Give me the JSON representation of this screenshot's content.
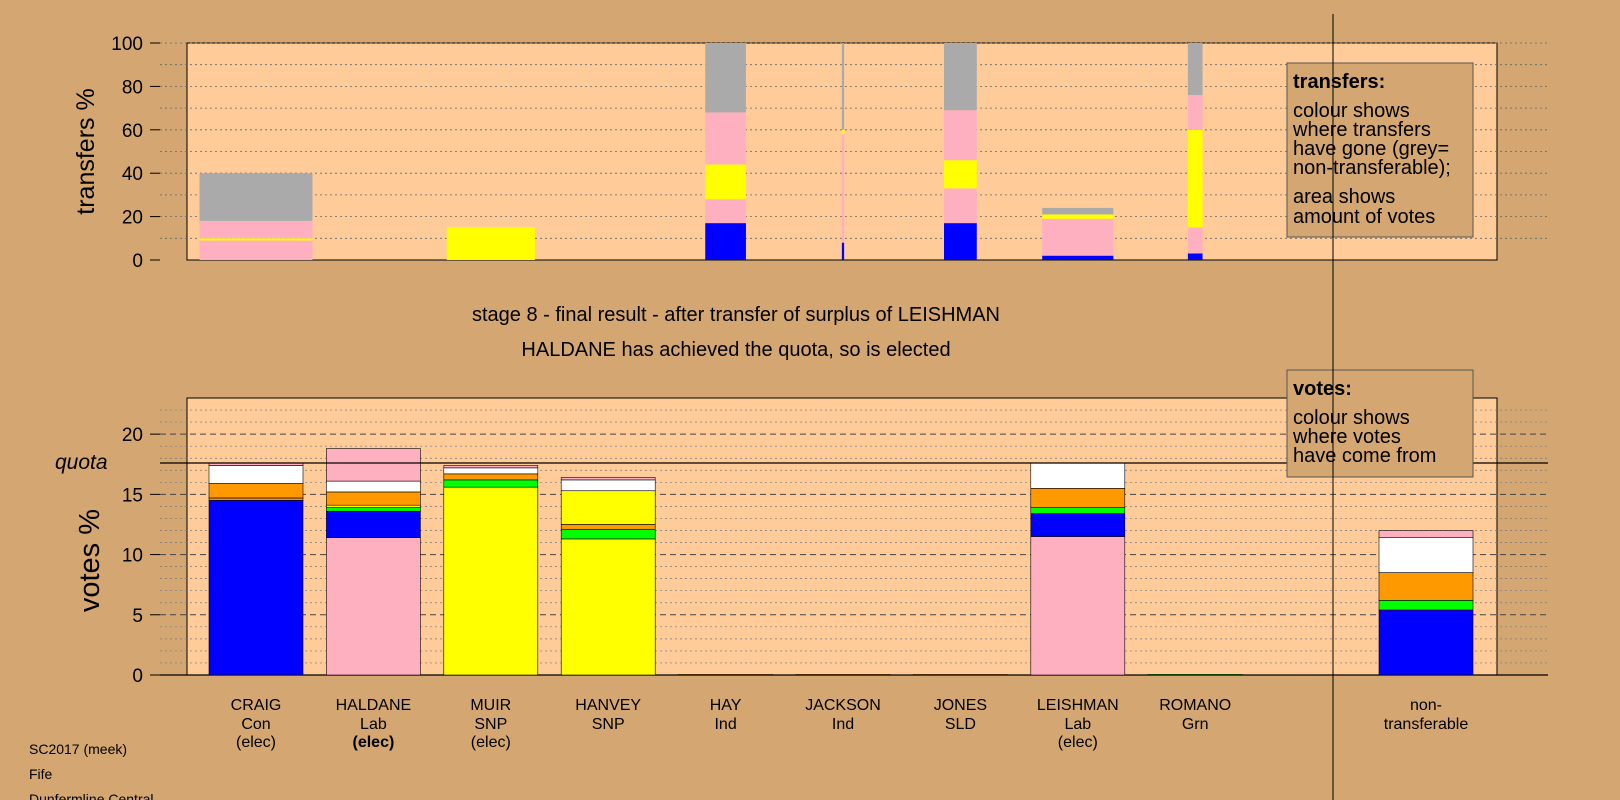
{
  "stage_title": "stage 8 - final result - after transfer of surplus of LEISHMAN",
  "stage_subtitle": "HALDANE has achieved the quota, so is elected",
  "footer": {
    "line1": "SC2017 (meek)",
    "line2": "Fife",
    "line3": "Dunfermline Central"
  },
  "colors": {
    "background": "#d4a772",
    "plot_background": "#ffcc99",
    "Con": "#0000ff",
    "Lab": "#ffb0c0",
    "SNP": "#ffff00",
    "Grn": "#00ff00",
    "Ind": "#ff8c00",
    "SLD": "#ff9900",
    "other": "#ffffff",
    "nontransferable": "#aaaaaa"
  },
  "chart_data": [
    {
      "type": "bar",
      "name": "transfers",
      "ylabel": "transfers %",
      "ylim": [
        0,
        100
      ],
      "yticks": [
        0,
        20,
        40,
        60,
        80,
        100
      ],
      "legend": {
        "title": "transfers:",
        "text": "colour shows where transfers have gone (grey= non-transferable); area shows amount of votes",
        "lines": [
          "colour shows",
          "where transfers",
          "have gone (grey=",
          "non-transferable);"
        ],
        "lines2": [
          "area shows",
          "amount of votes"
        ]
      },
      "bars": [
        {
          "candidate": "CRAIG",
          "width_share": 1.0,
          "segments": [
            {
              "color": "#ffb0c0",
              "value": 9
            },
            {
              "color": "#ffff00",
              "value": 1
            },
            {
              "color": "#ffb0c0",
              "value": 8
            },
            {
              "color": "#aaaaaa",
              "value": 22
            }
          ]
        },
        {
          "candidate": "MUIR",
          "width_share": 0.78,
          "segments": [
            {
              "color": "#ffff00",
              "value": 15
            }
          ]
        },
        {
          "candidate": "HAY",
          "width_share": 0.36,
          "segments": [
            {
              "color": "#0000ff",
              "value": 17
            },
            {
              "color": "#ffb0c0",
              "value": 11
            },
            {
              "color": "#ffff00",
              "value": 16
            },
            {
              "color": "#ffb0c0",
              "value": 24
            },
            {
              "color": "#aaaaaa",
              "value": 32
            }
          ]
        },
        {
          "candidate": "JACKSON",
          "width_share": 0.02,
          "segments": [
            {
              "color": "#0000ff",
              "value": 8
            },
            {
              "color": "#ffb0c0",
              "value": 50
            },
            {
              "color": "#ffff00",
              "value": 2
            },
            {
              "color": "#aaaaaa",
              "value": 40
            }
          ]
        },
        {
          "candidate": "JONES",
          "width_share": 0.29,
          "segments": [
            {
              "color": "#0000ff",
              "value": 17
            },
            {
              "color": "#ffb0c0",
              "value": 16
            },
            {
              "color": "#ffff00",
              "value": 13
            },
            {
              "color": "#ffb0c0",
              "value": 23
            },
            {
              "color": "#aaaaaa",
              "value": 31
            }
          ]
        },
        {
          "candidate": "LEISHMAN",
          "width_share": 0.63,
          "segments": [
            {
              "color": "#0000ff",
              "value": 2
            },
            {
              "color": "#ffb0c0",
              "value": 17
            },
            {
              "color": "#ffff00",
              "value": 2
            },
            {
              "color": "#aaaaaa",
              "value": 3
            }
          ]
        },
        {
          "candidate": "ROMANO",
          "width_share": 0.13,
          "segments": [
            {
              "color": "#0000ff",
              "value": 3
            },
            {
              "color": "#ffb0c0",
              "value": 12
            },
            {
              "color": "#ffff00",
              "value": 45
            },
            {
              "color": "#ffb0c0",
              "value": 16
            },
            {
              "color": "#aaaaaa",
              "value": 24
            }
          ]
        }
      ]
    },
    {
      "type": "bar",
      "name": "votes",
      "ylabel": "votes %",
      "ylim": [
        0,
        23
      ],
      "yticks": [
        0,
        5,
        10,
        15,
        20
      ],
      "quota": 17.6,
      "quota_label": "quota",
      "legend": {
        "title": "votes:",
        "lines": [
          "colour shows",
          "where votes",
          "have come from"
        ]
      },
      "categories": [
        {
          "name": "CRAIG",
          "party": "Con",
          "status": "(elec)",
          "bold_status": false
        },
        {
          "name": "HALDANE",
          "party": "Lab",
          "status": "(elec)",
          "bold_status": true
        },
        {
          "name": "MUIR",
          "party": "SNP",
          "status": "(elec)",
          "bold_status": false
        },
        {
          "name": "HANVEY",
          "party": "SNP",
          "status": "",
          "bold_status": false
        },
        {
          "name": "HAY",
          "party": "Ind",
          "status": "",
          "bold_status": false
        },
        {
          "name": "JACKSON",
          "party": "Ind",
          "status": "",
          "bold_status": false
        },
        {
          "name": "JONES",
          "party": "SLD",
          "status": "",
          "bold_status": false
        },
        {
          "name": "LEISHMAN",
          "party": "Lab",
          "status": "(elec)",
          "bold_status": false
        },
        {
          "name": "ROMANO",
          "party": "Grn",
          "status": "",
          "bold_status": false
        }
      ],
      "nontransferable_label": [
        "non-",
        "transferable"
      ],
      "bars": [
        {
          "candidate": "CRAIG",
          "segments": [
            {
              "color": "#0000ff",
              "value": 14.5
            },
            {
              "color": "#ff8c00",
              "value": 0.2
            },
            {
              "color": "#ff9900",
              "value": 1.2
            },
            {
              "color": "#ffffff",
              "value": 1.5
            },
            {
              "color": "#ffb0c0",
              "value": 0.2
            }
          ]
        },
        {
          "candidate": "HALDANE",
          "segments": [
            {
              "color": "#ffb0c0",
              "value": 11.4
            },
            {
              "color": "#0000ff",
              "value": 2.2
            },
            {
              "color": "#00ff00",
              "value": 0.3
            },
            {
              "color": "#ffff00",
              "value": 0.2
            },
            {
              "color": "#ff9900",
              "value": 1.1
            },
            {
              "color": "#ffffff",
              "value": 0.9
            },
            {
              "color": "#ffb0c0",
              "value": 2.7
            }
          ]
        },
        {
          "candidate": "MUIR",
          "segments": [
            {
              "color": "#ffff00",
              "value": 15.6
            },
            {
              "color": "#00ff00",
              "value": 0.6
            },
            {
              "color": "#ff9900",
              "value": 0.5
            },
            {
              "color": "#ffffff",
              "value": 0.5
            },
            {
              "color": "#ffb0c0",
              "value": 0.2
            }
          ]
        },
        {
          "candidate": "HANVEY",
          "segments": [
            {
              "color": "#ffff00",
              "value": 11.3
            },
            {
              "color": "#00ff00",
              "value": 0.8
            },
            {
              "color": "#ff9900",
              "value": 0.4
            },
            {
              "color": "#ffff00",
              "value": 2.8
            },
            {
              "color": "#ffffff",
              "value": 0.9
            },
            {
              "color": "#ffb0c0",
              "value": 0.2
            }
          ]
        },
        {
          "candidate": "HAY",
          "segments": [
            {
              "color": "#ff8c00",
              "value": 0.05
            }
          ]
        },
        {
          "candidate": "JACKSON",
          "segments": [
            {
              "color": "#ff8c00",
              "value": 0.05
            }
          ]
        },
        {
          "candidate": "JONES",
          "segments": [
            {
              "color": "#ff9900",
              "value": 0.05
            }
          ]
        },
        {
          "candidate": "LEISHMAN",
          "segments": [
            {
              "color": "#ffb0c0",
              "value": 11.5
            },
            {
              "color": "#0000ff",
              "value": 1.9
            },
            {
              "color": "#00ff00",
              "value": 0.5
            },
            {
              "color": "#ff9900",
              "value": 1.6
            },
            {
              "color": "#ffffff",
              "value": 2.1
            }
          ]
        },
        {
          "candidate": "ROMANO",
          "segments": [
            {
              "color": "#00ff00",
              "value": 0.05
            }
          ]
        }
      ],
      "nontransferable_segments": [
        {
          "color": "#0000ff",
          "value": 5.4
        },
        {
          "color": "#00ff00",
          "value": 0.8
        },
        {
          "color": "#ff9900",
          "value": 2.3
        },
        {
          "color": "#ffffff",
          "value": 2.9
        },
        {
          "color": "#ffb0c0",
          "value": 0.6
        }
      ]
    }
  ]
}
